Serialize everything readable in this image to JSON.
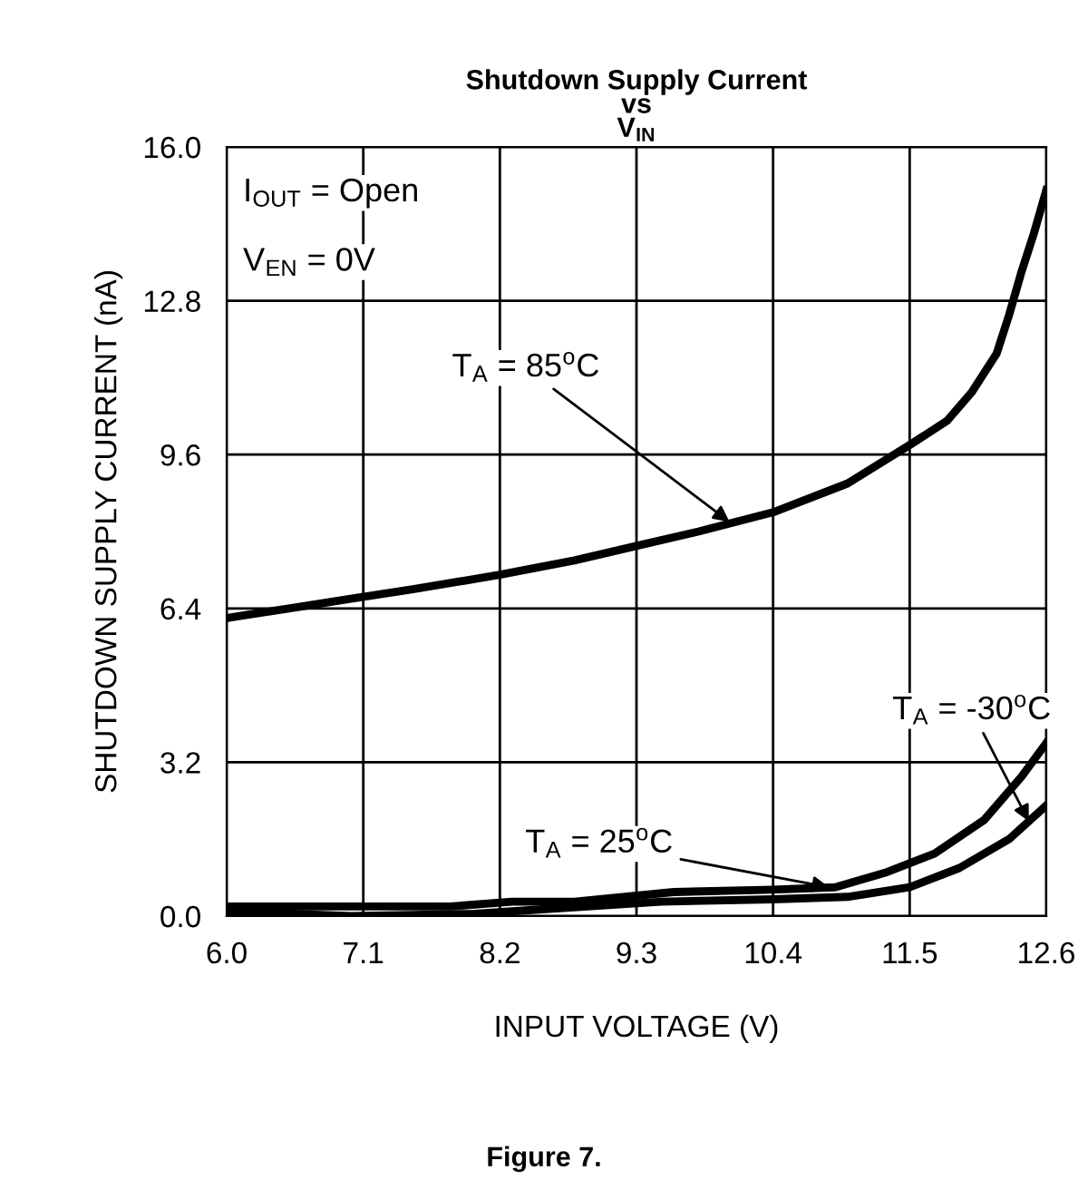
{
  "chart_data": {
    "type": "line",
    "title": "Shutdown Supply Current\nvs\nV$_{IN}$",
    "xlabel": "INPUT VOLTAGE (V)",
    "ylabel": "SHUTDOWN SUPPLY CURRENT (nA)",
    "series": [
      {
        "color": "#000000",
        "x": [
          6.0,
          6.5,
          7.0,
          7.5,
          8.2,
          8.8,
          9.3,
          9.8,
          10.4,
          11.0,
          11.5,
          11.8,
          12.0,
          12.2,
          12.3,
          12.4,
          12.5,
          12.6
        ],
        "values": [
          6.2,
          6.4,
          6.6,
          6.8,
          7.1,
          7.4,
          7.7,
          8.0,
          8.4,
          9.0,
          9.8,
          10.3,
          10.9,
          11.7,
          12.5,
          13.4,
          14.2,
          15.1
        ]
      },
      {
        "color": "#000000",
        "x": [
          6.0,
          7.0,
          7.8,
          8.3,
          8.8,
          9.6,
          10.4,
          10.9,
          11.3,
          11.7,
          12.1,
          12.4,
          12.6
        ],
        "values": [
          0.2,
          0.2,
          0.2,
          0.3,
          0.3,
          0.5,
          0.55,
          0.6,
          0.9,
          1.3,
          2.0,
          2.9,
          3.6
        ]
      },
      {
        "color": "#000000",
        "x": [
          6.0,
          7.0,
          8.0,
          8.6,
          9.5,
          10.4,
          11.0,
          11.5,
          11.9,
          12.3,
          12.6
        ],
        "values": [
          0.1,
          0.0,
          0.05,
          0.15,
          0.3,
          0.35,
          0.4,
          0.6,
          1.0,
          1.6,
          2.3
        ]
      }
    ],
    "xlim": [
      6.0,
      12.6
    ],
    "xticks": [
      {
        "value": 6.0,
        "label": "6.0"
      },
      7.1,
      8.2,
      9.3,
      10.4,
      11.5,
      12.6
    ],
    "ylim": [
      0.0,
      16.0
    ],
    "yticks": [
      {
        "value": 0.0,
        "label": "0.0"
      },
      3.2,
      6.4,
      9.6,
      12.8,
      {
        "value": 16.0,
        "label": "16.0"
      }
    ],
    "grid": true,
    "line_style": "solid",
    "marker": "none",
    "legend": false,
    "annotations": [
      "I$_{OUT}$ = Open",
      "V$_{EN}$ = 0V",
      {
        "text": "T$_{A}$ = 85$^{o}$C",
        "x": 10.05,
        "y": 8.2
      },
      {
        "text": "T$_{A}$ = 25$^{o}$C",
        "x": 10.85,
        "y": 0.6
      },
      {
        "text": "T$_{A}$ = -30$^{o}$C",
        "x": 12.46,
        "y": 1.97
      },
      "Figure 7."
    ]
  }
}
